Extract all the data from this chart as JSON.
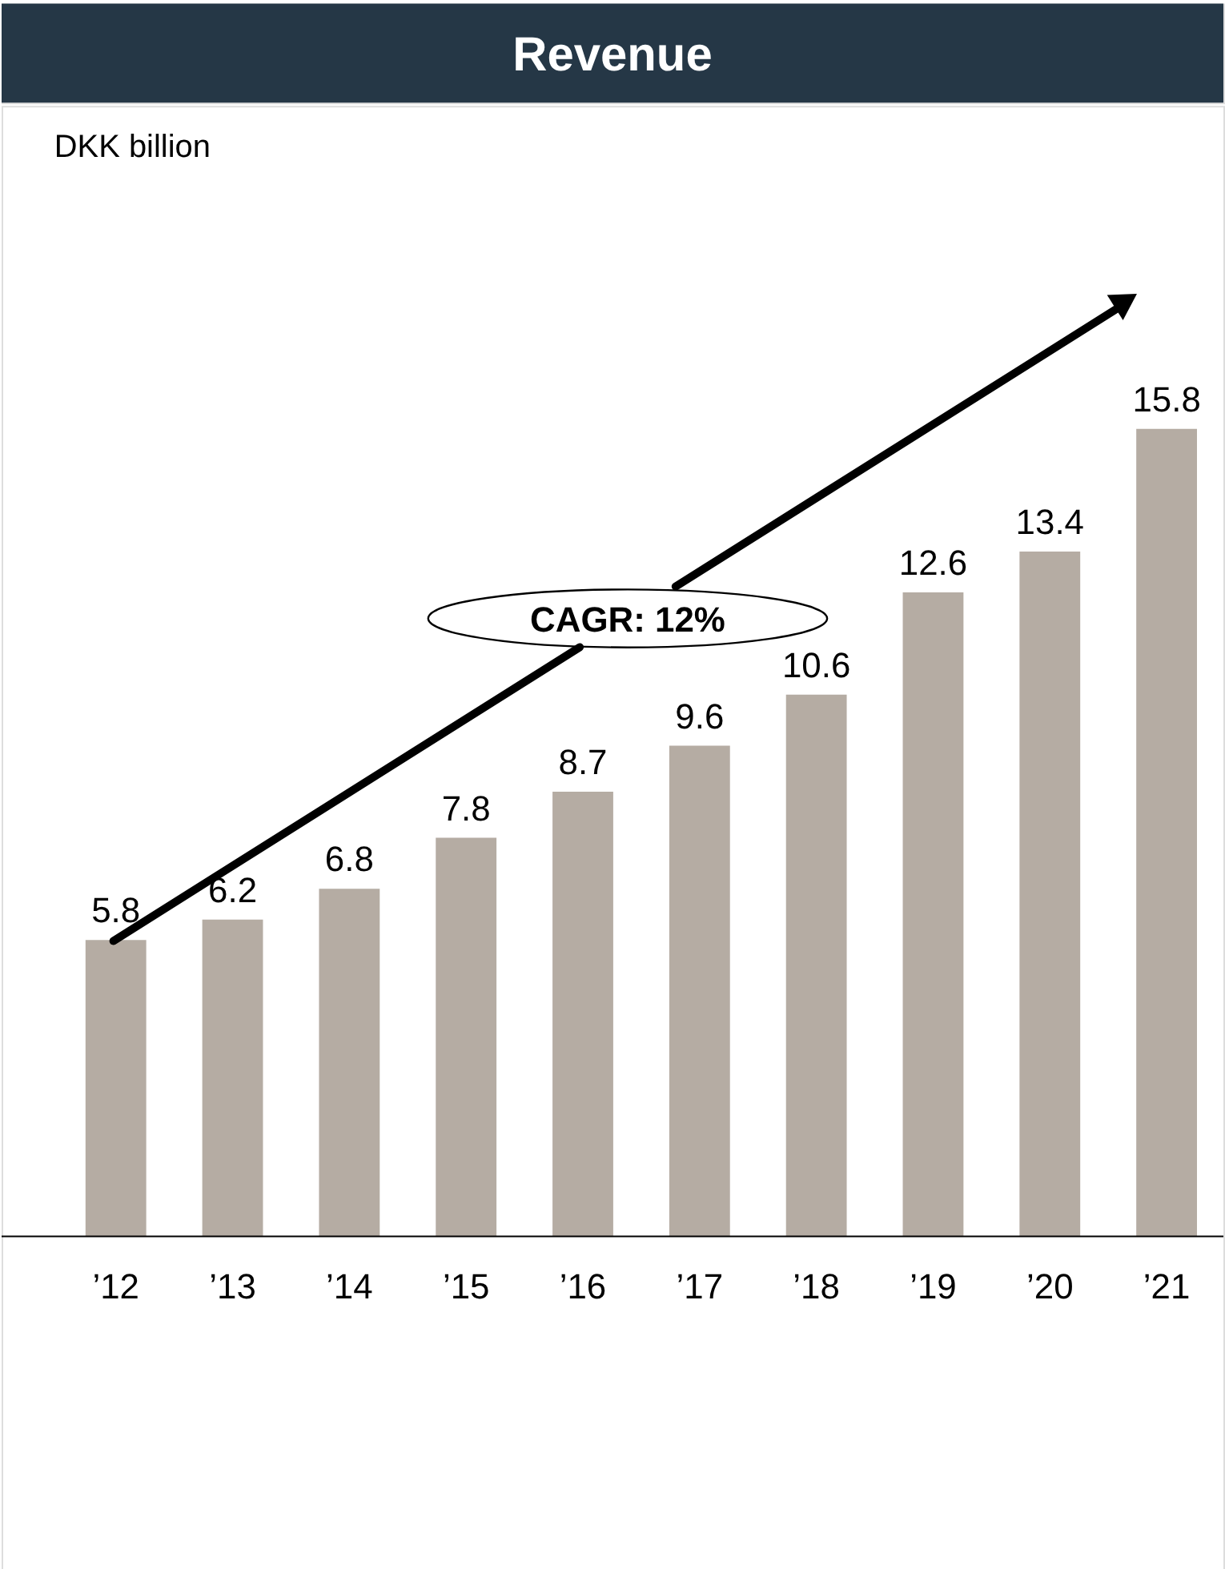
{
  "chart_data": {
    "type": "bar",
    "title": "Revenue",
    "categories": [
      "’12",
      "’13",
      "’14",
      "’15",
      "’16",
      "’17",
      "’18",
      "’19",
      "’20",
      "’21"
    ],
    "values": [
      5.8,
      6.2,
      6.8,
      7.8,
      8.7,
      9.6,
      10.6,
      12.6,
      13.4,
      15.8
    ],
    "color": "#b5aca3",
    "data_labels": true,
    "annotations": [
      "DKK billion",
      "CAGR: 12%"
    ]
  }
}
